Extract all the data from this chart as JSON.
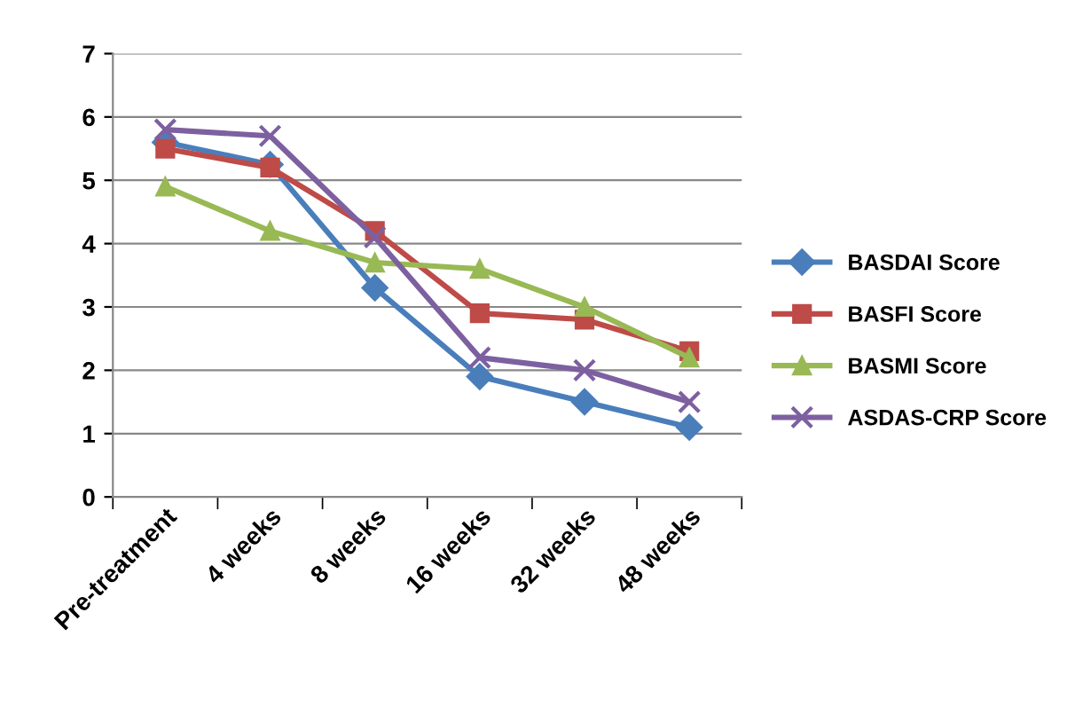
{
  "chart_data": {
    "type": "line",
    "categories": [
      "Pre-treatment",
      "4 weeks",
      "8 weeks",
      "16 weeks",
      "32 weeks",
      "48 weeks"
    ],
    "series": [
      {
        "name": "BASDAI Score",
        "color": "#4a7ebb",
        "marker": "diamond",
        "values": [
          5.6,
          5.25,
          3.3,
          1.9,
          1.5,
          1.1
        ]
      },
      {
        "name": "BASFI Score",
        "color": "#be4b48",
        "marker": "square",
        "values": [
          5.5,
          5.2,
          4.2,
          2.9,
          2.8,
          2.3
        ]
      },
      {
        "name": "BASMI Score",
        "color": "#98b954",
        "marker": "triangle",
        "values": [
          4.9,
          4.2,
          3.7,
          3.6,
          3.0,
          2.2
        ]
      },
      {
        "name": "ASDAS-CRP Score",
        "color": "#7d60a0",
        "marker": "cross",
        "values": [
          5.8,
          5.7,
          4.1,
          2.2,
          2.0,
          1.5
        ]
      }
    ],
    "ylim": [
      0,
      7
    ],
    "yticks": [
      0,
      1,
      2,
      3,
      4,
      5,
      6,
      7
    ],
    "grid": "y",
    "legend": "right",
    "line_style": "solid"
  }
}
